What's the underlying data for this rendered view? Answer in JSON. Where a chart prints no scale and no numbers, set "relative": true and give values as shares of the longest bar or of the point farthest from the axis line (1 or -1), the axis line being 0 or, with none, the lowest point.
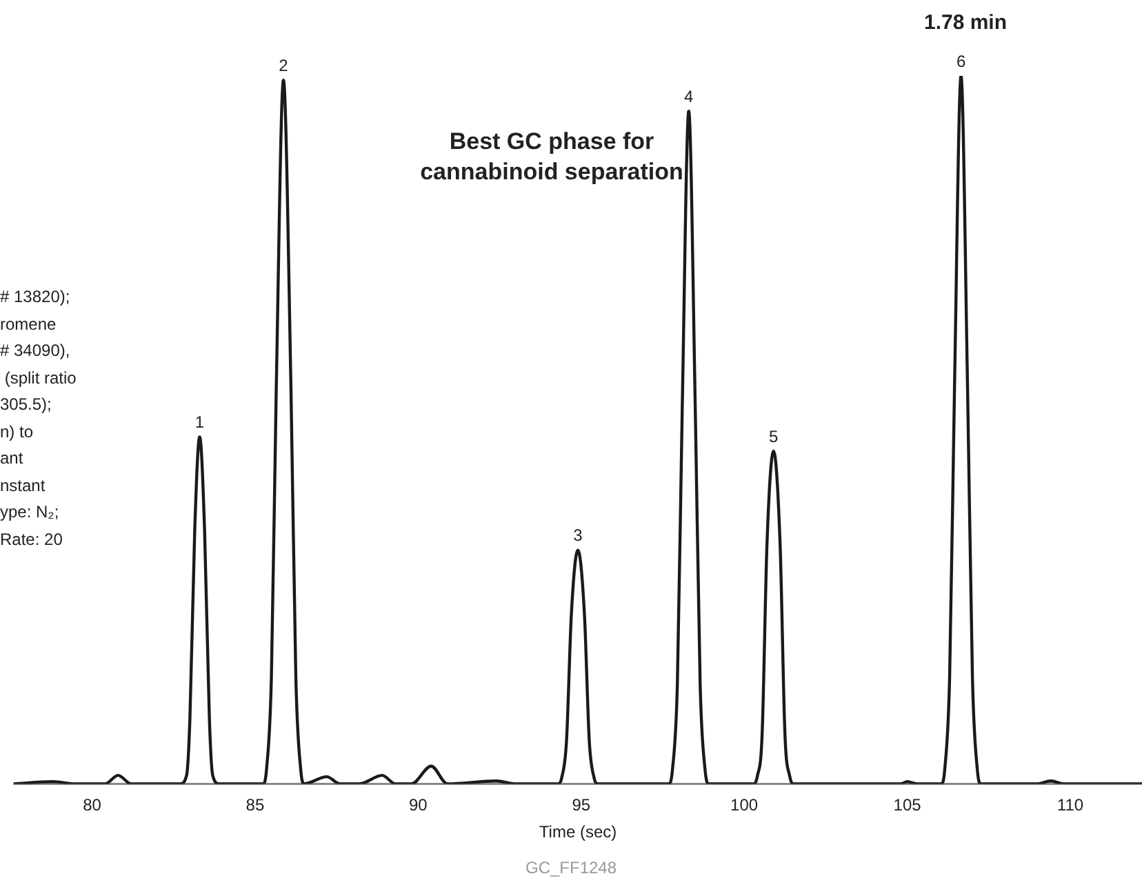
{
  "chart_data": {
    "type": "line",
    "title": "Best GC phase for cannabinoid separation",
    "subtitle": "1.78 min",
    "xlabel": "Time (sec)",
    "relative": true,
    "x": [
      77.6,
      78.8,
      79.5,
      80.4,
      80.8,
      81.2,
      82.7,
      82.9,
      83.0,
      83.15,
      83.3,
      83.45,
      83.6,
      83.7,
      83.9,
      85.25,
      85.35,
      85.5,
      85.65,
      85.87,
      86.1,
      86.25,
      86.4,
      86.5,
      87.2,
      87.6,
      88.2,
      88.9,
      89.3,
      89.8,
      90.4,
      90.9,
      92.4,
      93.0,
      94.3,
      94.4,
      94.55,
      94.7,
      94.9,
      95.1,
      95.25,
      95.4,
      95.5,
      97.7,
      97.8,
      97.95,
      98.1,
      98.3,
      98.5,
      98.65,
      98.8,
      98.9,
      100.3,
      100.4,
      100.55,
      100.7,
      100.9,
      101.1,
      101.25,
      101.4,
      101.5,
      104.8,
      105.0,
      105.3,
      106.05,
      106.15,
      106.3,
      106.45,
      106.65,
      106.85,
      107.0,
      107.15,
      107.25,
      109.0,
      109.4,
      109.8,
      112.2
    ],
    "series": [
      {
        "color": "#1a1a1a",
        "values": [
          0,
          0.003,
          0,
          0,
          0.012,
          0,
          0,
          0.012,
          0.09,
          0.36,
          0.49,
          0.36,
          0.09,
          0.012,
          0,
          0,
          0.02,
          0.15,
          0.56,
          0.994,
          0.56,
          0.15,
          0.02,
          0,
          0.01,
          0,
          0,
          0.012,
          0,
          0,
          0.025,
          0,
          0.004,
          0,
          0,
          0.008,
          0.06,
          0.24,
          0.33,
          0.24,
          0.06,
          0.008,
          0,
          0,
          0.02,
          0.14,
          0.53,
          0.95,
          0.53,
          0.14,
          0.02,
          0,
          0,
          0.01,
          0.07,
          0.34,
          0.47,
          0.34,
          0.07,
          0.01,
          0,
          0,
          0.003,
          0,
          0,
          0.02,
          0.15,
          0.56,
          1,
          0.56,
          0.15,
          0.02,
          0,
          0,
          0.004,
          0,
          0
        ]
      }
    ],
    "xlim": [
      77.6,
      112.2
    ],
    "xticks": [
      80,
      85,
      90,
      95,
      100,
      105,
      110
    ],
    "grid": false,
    "legend": false,
    "marker": "none",
    "line_style": "solid",
    "annotations": [
      "# 13820);\nromene\n# 34090),\n (split ratio\n305.5);\nn) to\nant\nnstant\nype: N₂;\nRate: 20",
      "GC_FF1248",
      {
        "text": "1",
        "x": 83.3,
        "y": 0.49
      },
      {
        "text": "2",
        "x": 85.87,
        "y": 0.994
      },
      {
        "text": "3",
        "x": 94.9,
        "y": 0.33
      },
      {
        "text": "4",
        "x": 98.3,
        "y": 0.95
      },
      {
        "text": "5",
        "x": 100.9,
        "y": 0.47
      },
      {
        "text": "6",
        "x": 106.65,
        "y": 1
      }
    ]
  }
}
